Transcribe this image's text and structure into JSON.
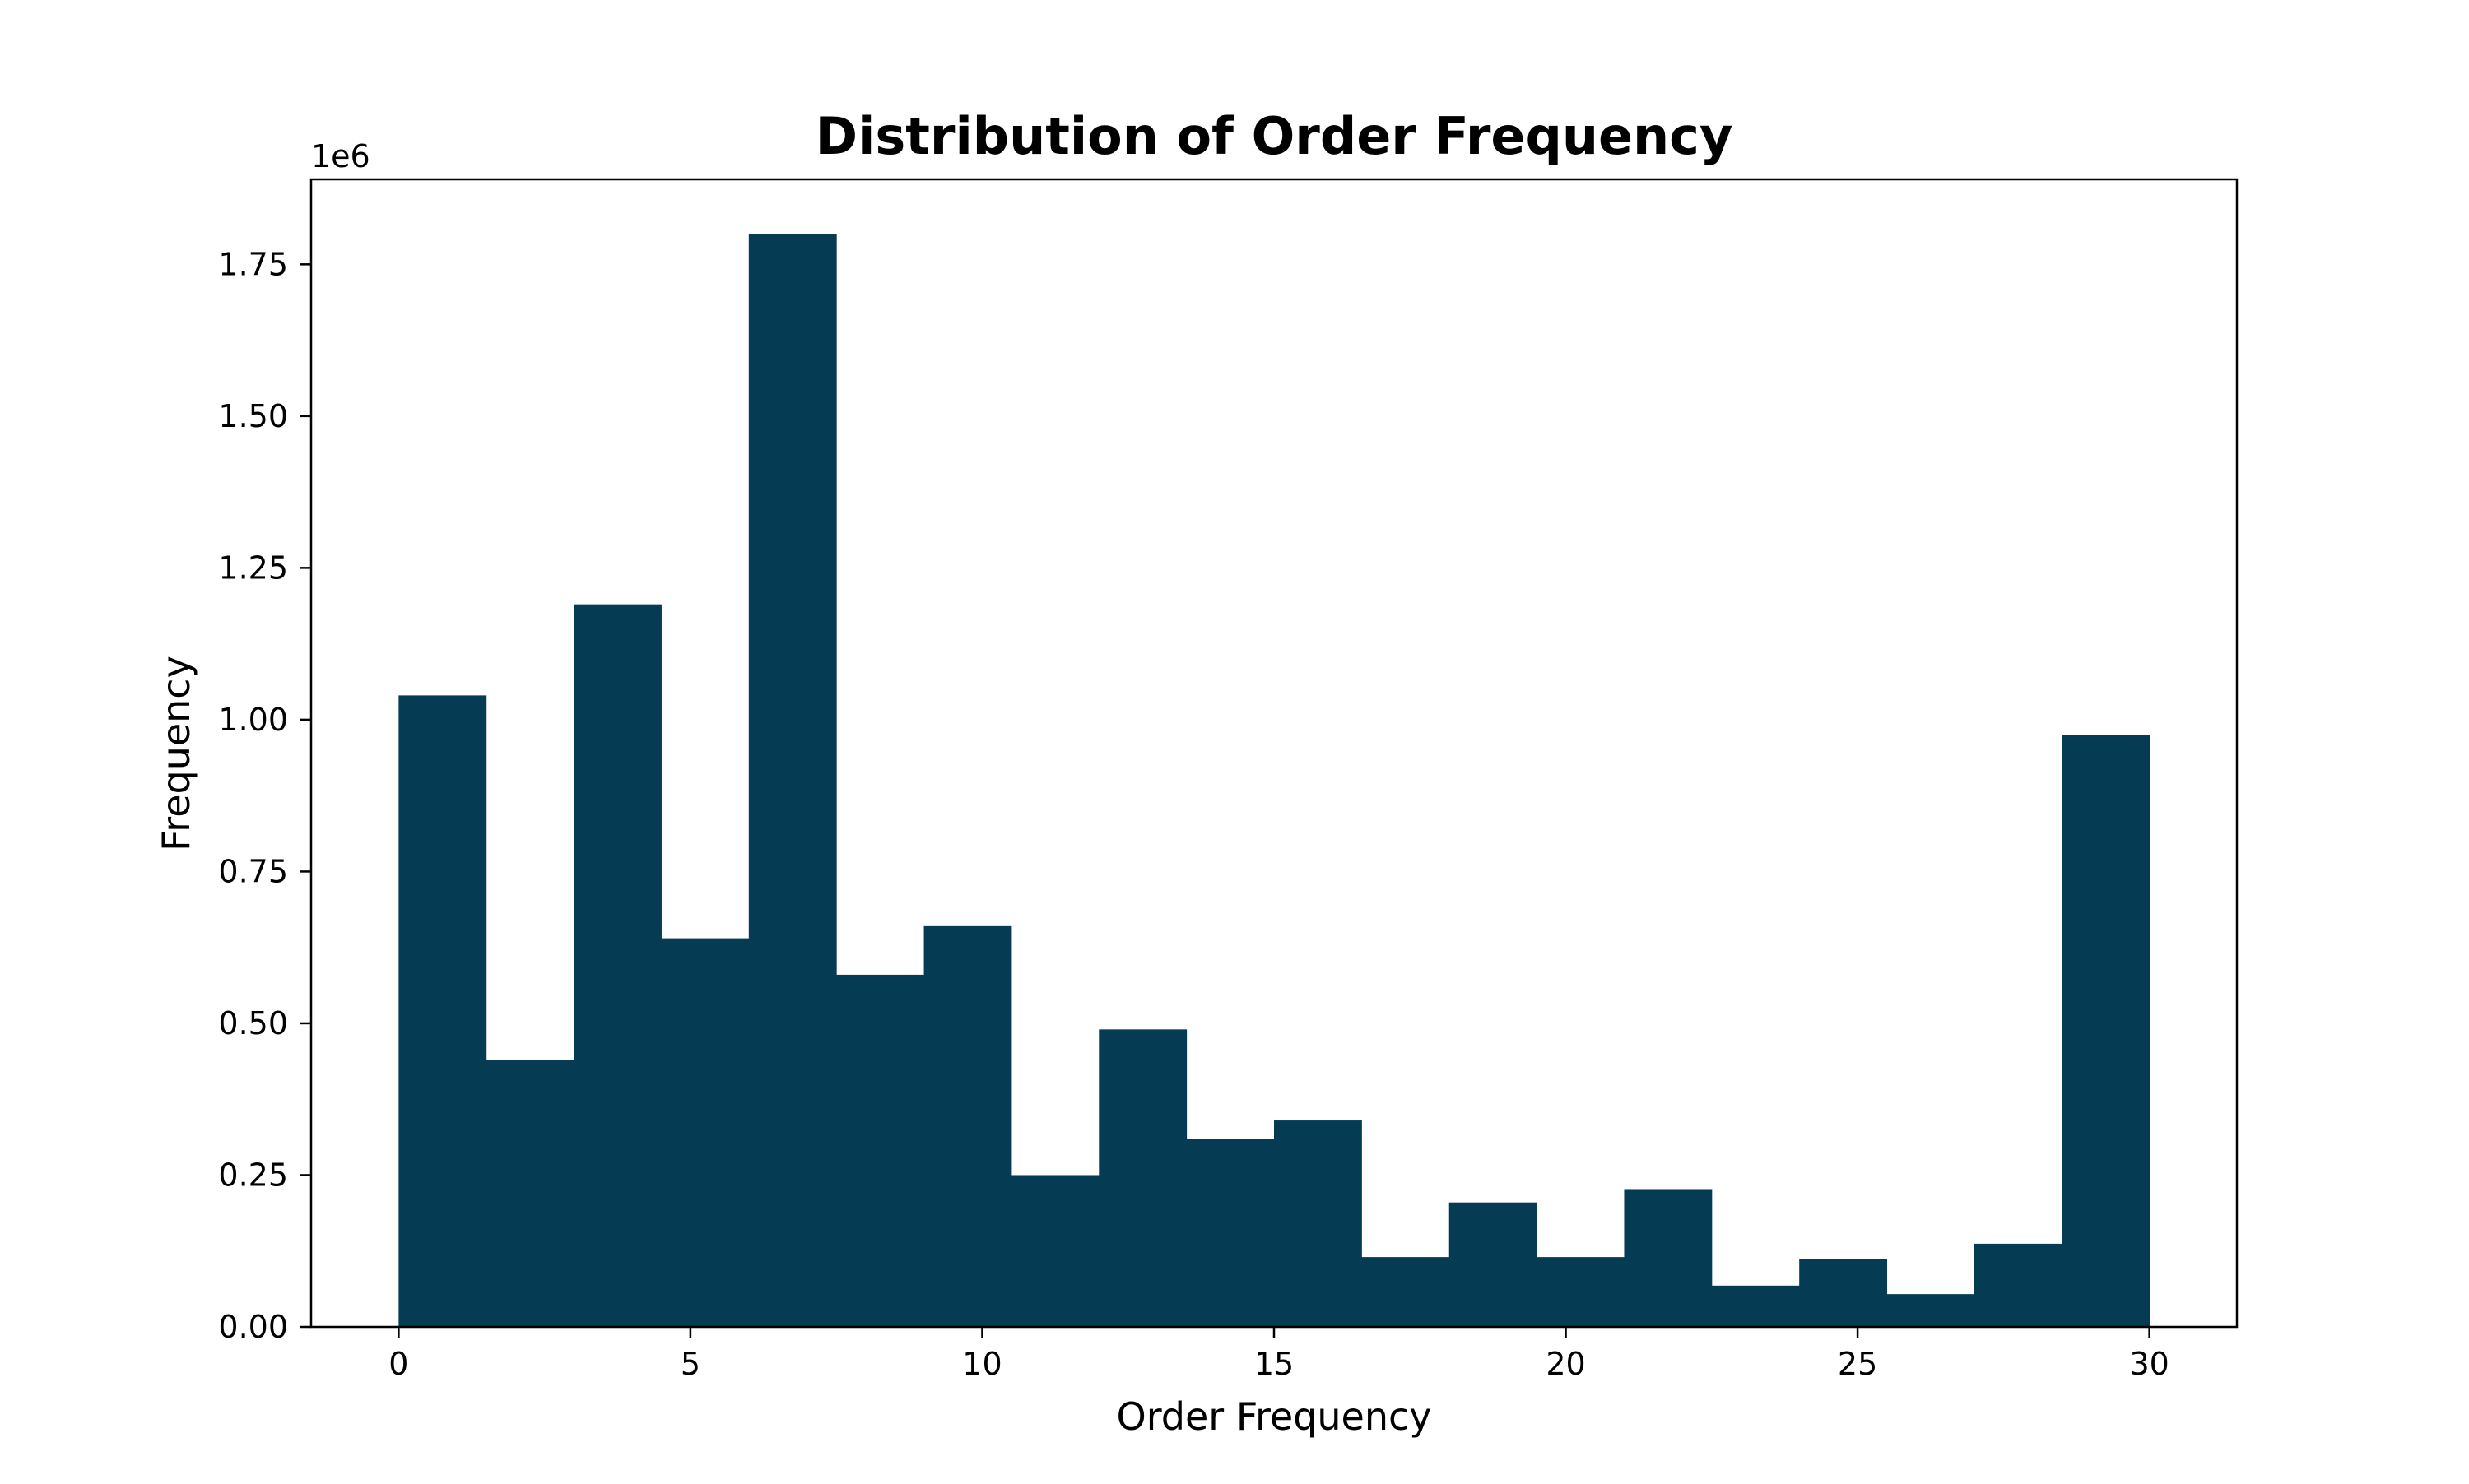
{
  "chart_data": {
    "type": "bar",
    "title": "Distribution of Order Frequency",
    "xlabel": "Order Frequency",
    "ylabel": "Frequency",
    "y_offset_text": "1e6",
    "bar_color": "#063c53",
    "xlim": [
      -1.5,
      31.5
    ],
    "ylim": [
      0,
      1.89
    ],
    "x_ticks": [
      0,
      5,
      10,
      15,
      20,
      25,
      30
    ],
    "x_tick_labels": [
      "0",
      "5",
      "10",
      "15",
      "20",
      "25",
      "30"
    ],
    "y_ticks": [
      0,
      0.25,
      0.5,
      0.75,
      1.0,
      1.25,
      1.5,
      1.75
    ],
    "y_tick_labels": [
      "0.00",
      "0.25",
      "0.50",
      "0.75",
      "1.00",
      "1.25",
      "1.50",
      "1.75"
    ],
    "bin_edges": [
      0,
      1.5,
      3,
      4.5,
      6,
      7.5,
      9,
      10.5,
      12,
      13.5,
      15,
      16.5,
      18,
      19.5,
      21,
      22.5,
      24,
      25.5,
      27,
      28.5,
      30
    ],
    "values": [
      1.04,
      0.44,
      1.19,
      0.64,
      1.8,
      0.58,
      0.66,
      0.25,
      0.49,
      0.31,
      0.34,
      0.115,
      0.205,
      0.115,
      0.227,
      0.068,
      0.112,
      0.054,
      0.137,
      0.975
    ],
    "grid": false,
    "legend": "none"
  }
}
